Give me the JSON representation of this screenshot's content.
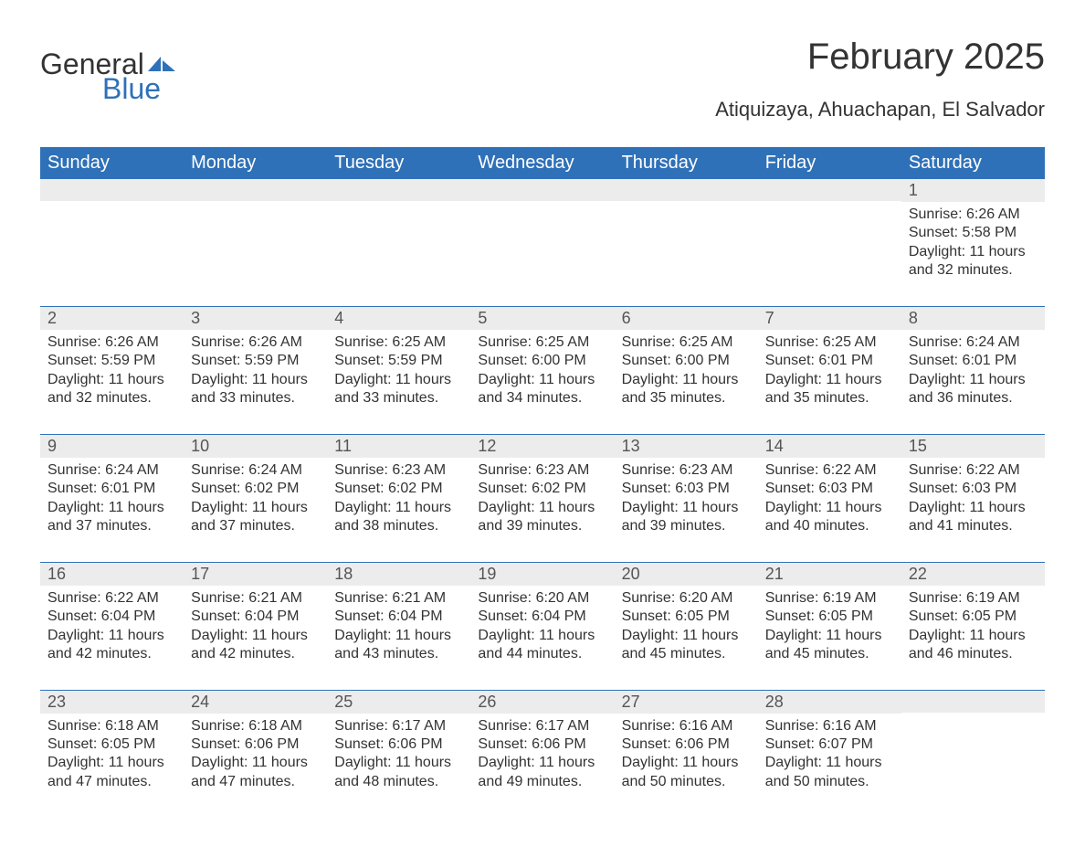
{
  "logo": {
    "part1": "General",
    "part2": "Blue"
  },
  "title": "February 2025",
  "location": "Atiquizaya, Ahuachapan, El Salvador",
  "colors": {
    "header_bg": "#2f71b8",
    "header_text": "#ffffff",
    "daynum_bg": "#ececec",
    "row_divider": "#2f71b8",
    "body_text": "#333333",
    "logo_accent": "#2f71b8"
  },
  "fonts": {
    "title_size_pt": 30,
    "location_size_pt": 16,
    "header_size_pt": 15,
    "cell_size_pt": 12,
    "family": "Arial"
  },
  "day_headers": [
    "Sunday",
    "Monday",
    "Tuesday",
    "Wednesday",
    "Thursday",
    "Friday",
    "Saturday"
  ],
  "weeks": [
    [
      {
        "n": "",
        "lines": []
      },
      {
        "n": "",
        "lines": []
      },
      {
        "n": "",
        "lines": []
      },
      {
        "n": "",
        "lines": []
      },
      {
        "n": "",
        "lines": []
      },
      {
        "n": "",
        "lines": []
      },
      {
        "n": "1",
        "lines": [
          "Sunrise: 6:26 AM",
          "Sunset: 5:58 PM",
          "Daylight: 11 hours and 32 minutes."
        ]
      }
    ],
    [
      {
        "n": "2",
        "lines": [
          "Sunrise: 6:26 AM",
          "Sunset: 5:59 PM",
          "Daylight: 11 hours and 32 minutes."
        ]
      },
      {
        "n": "3",
        "lines": [
          "Sunrise: 6:26 AM",
          "Sunset: 5:59 PM",
          "Daylight: 11 hours and 33 minutes."
        ]
      },
      {
        "n": "4",
        "lines": [
          "Sunrise: 6:25 AM",
          "Sunset: 5:59 PM",
          "Daylight: 11 hours and 33 minutes."
        ]
      },
      {
        "n": "5",
        "lines": [
          "Sunrise: 6:25 AM",
          "Sunset: 6:00 PM",
          "Daylight: 11 hours and 34 minutes."
        ]
      },
      {
        "n": "6",
        "lines": [
          "Sunrise: 6:25 AM",
          "Sunset: 6:00 PM",
          "Daylight: 11 hours and 35 minutes."
        ]
      },
      {
        "n": "7",
        "lines": [
          "Sunrise: 6:25 AM",
          "Sunset: 6:01 PM",
          "Daylight: 11 hours and 35 minutes."
        ]
      },
      {
        "n": "8",
        "lines": [
          "Sunrise: 6:24 AM",
          "Sunset: 6:01 PM",
          "Daylight: 11 hours and 36 minutes."
        ]
      }
    ],
    [
      {
        "n": "9",
        "lines": [
          "Sunrise: 6:24 AM",
          "Sunset: 6:01 PM",
          "Daylight: 11 hours and 37 minutes."
        ]
      },
      {
        "n": "10",
        "lines": [
          "Sunrise: 6:24 AM",
          "Sunset: 6:02 PM",
          "Daylight: 11 hours and 37 minutes."
        ]
      },
      {
        "n": "11",
        "lines": [
          "Sunrise: 6:23 AM",
          "Sunset: 6:02 PM",
          "Daylight: 11 hours and 38 minutes."
        ]
      },
      {
        "n": "12",
        "lines": [
          "Sunrise: 6:23 AM",
          "Sunset: 6:02 PM",
          "Daylight: 11 hours and 39 minutes."
        ]
      },
      {
        "n": "13",
        "lines": [
          "Sunrise: 6:23 AM",
          "Sunset: 6:03 PM",
          "Daylight: 11 hours and 39 minutes."
        ]
      },
      {
        "n": "14",
        "lines": [
          "Sunrise: 6:22 AM",
          "Sunset: 6:03 PM",
          "Daylight: 11 hours and 40 minutes."
        ]
      },
      {
        "n": "15",
        "lines": [
          "Sunrise: 6:22 AM",
          "Sunset: 6:03 PM",
          "Daylight: 11 hours and 41 minutes."
        ]
      }
    ],
    [
      {
        "n": "16",
        "lines": [
          "Sunrise: 6:22 AM",
          "Sunset: 6:04 PM",
          "Daylight: 11 hours and 42 minutes."
        ]
      },
      {
        "n": "17",
        "lines": [
          "Sunrise: 6:21 AM",
          "Sunset: 6:04 PM",
          "Daylight: 11 hours and 42 minutes."
        ]
      },
      {
        "n": "18",
        "lines": [
          "Sunrise: 6:21 AM",
          "Sunset: 6:04 PM",
          "Daylight: 11 hours and 43 minutes."
        ]
      },
      {
        "n": "19",
        "lines": [
          "Sunrise: 6:20 AM",
          "Sunset: 6:04 PM",
          "Daylight: 11 hours and 44 minutes."
        ]
      },
      {
        "n": "20",
        "lines": [
          "Sunrise: 6:20 AM",
          "Sunset: 6:05 PM",
          "Daylight: 11 hours and 45 minutes."
        ]
      },
      {
        "n": "21",
        "lines": [
          "Sunrise: 6:19 AM",
          "Sunset: 6:05 PM",
          "Daylight: 11 hours and 45 minutes."
        ]
      },
      {
        "n": "22",
        "lines": [
          "Sunrise: 6:19 AM",
          "Sunset: 6:05 PM",
          "Daylight: 11 hours and 46 minutes."
        ]
      }
    ],
    [
      {
        "n": "23",
        "lines": [
          "Sunrise: 6:18 AM",
          "Sunset: 6:05 PM",
          "Daylight: 11 hours and 47 minutes."
        ]
      },
      {
        "n": "24",
        "lines": [
          "Sunrise: 6:18 AM",
          "Sunset: 6:06 PM",
          "Daylight: 11 hours and 47 minutes."
        ]
      },
      {
        "n": "25",
        "lines": [
          "Sunrise: 6:17 AM",
          "Sunset: 6:06 PM",
          "Daylight: 11 hours and 48 minutes."
        ]
      },
      {
        "n": "26",
        "lines": [
          "Sunrise: 6:17 AM",
          "Sunset: 6:06 PM",
          "Daylight: 11 hours and 49 minutes."
        ]
      },
      {
        "n": "27",
        "lines": [
          "Sunrise: 6:16 AM",
          "Sunset: 6:06 PM",
          "Daylight: 11 hours and 50 minutes."
        ]
      },
      {
        "n": "28",
        "lines": [
          "Sunrise: 6:16 AM",
          "Sunset: 6:07 PM",
          "Daylight: 11 hours and 50 minutes."
        ]
      },
      {
        "n": "",
        "lines": []
      }
    ]
  ]
}
